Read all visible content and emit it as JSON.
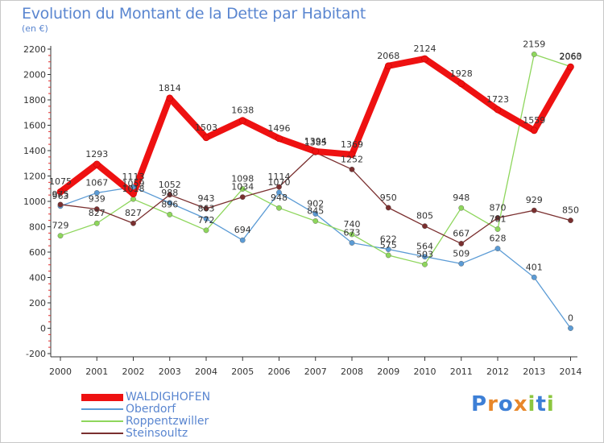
{
  "title": "Evolution du Montant de la Dette par Habitant",
  "subtitle": "(en €)",
  "brand": {
    "text": "Proxiti",
    "letter_colors": [
      "#3d7fd6",
      "#e8872a",
      "#3d7fd6",
      "#e8872a",
      "#8cc63f",
      "#3d7fd6",
      "#8cc63f"
    ]
  },
  "chart_data": {
    "type": "line",
    "x": [
      "2000",
      "2001",
      "2002",
      "2003",
      "2004",
      "2005",
      "2006",
      "2007",
      "2008",
      "2009",
      "2010",
      "2011",
      "2012",
      "2013",
      "2014"
    ],
    "ylim": [
      -200,
      2200
    ],
    "yticks": [
      "-200",
      "0",
      "200",
      "400",
      "600",
      "800",
      "1000",
      "1200",
      "1400",
      "1600",
      "1800",
      "2000",
      "2200"
    ],
    "grid": false,
    "legend_position": "bottom-left",
    "series": [
      {
        "name": "Oberdorf",
        "color": "#5b9bd5",
        "values": [
          963,
          1067,
          1113,
          988,
          863,
          694,
          1070,
          902,
          673,
          622,
          564,
          509,
          628,
          401,
          0
        ],
        "labels": [
          "963",
          "1067",
          "1113",
          "988",
          "863",
          "694",
          "1070",
          "902",
          "673",
          "622",
          "564",
          "509",
          "628",
          "401",
          "0"
        ]
      },
      {
        "name": "Roppentzwiller",
        "color": "#8ed65c",
        "values": [
          729,
          827,
          1018,
          896,
          772,
          1098,
          948,
          845,
          740,
          575,
          503,
          948,
          781,
          2159,
          2063
        ],
        "labels": [
          "729",
          "827",
          "1018",
          "896",
          "772",
          "1098",
          "948",
          "845",
          "740",
          "575",
          "503",
          "948",
          "781",
          "2159",
          "2063"
        ]
      },
      {
        "name": "Steinsoultz",
        "color": "#7a2f2f",
        "values": [
          975,
          939,
          827,
          1052,
          943,
          1034,
          1114,
          1385,
          1252,
          950,
          805,
          667,
          870,
          929,
          850
        ],
        "labels": [
          "975",
          "939",
          "827",
          "1052",
          "943",
          "1034",
          "1114",
          "1385",
          "1252",
          "950",
          "805",
          "667",
          "870",
          "929",
          "850"
        ]
      },
      {
        "name": "WALDIGHOFEN",
        "color": "#ee1111",
        "values": [
          1075,
          1293,
          1059,
          1814,
          1503,
          1638,
          1496,
          1394,
          1369,
          2068,
          2124,
          1928,
          1723,
          1559,
          2060
        ],
        "labels": [
          "1075",
          "1293",
          "1059",
          "1814",
          "1503",
          "1638",
          "1496",
          "1394",
          "1369",
          "2068",
          "2124",
          "1928",
          "1723",
          "1559",
          "2060"
        ]
      }
    ],
    "legend": [
      "WALDIGHOFEN",
      "Oberdorf",
      "Roppentzwiller",
      "Steinsoultz"
    ]
  }
}
